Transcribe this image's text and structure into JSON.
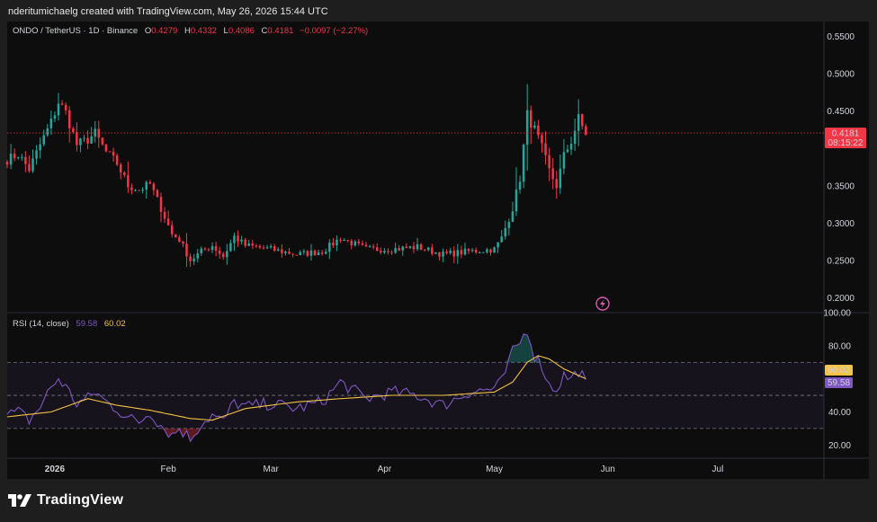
{
  "header": {
    "text": "nderitumichaelg created with TradingView.com, May 26, 2026 15:44 UTC"
  },
  "legend": {
    "symbol": "ONDO / TetherUS · 1D · Binance",
    "open_label": "O",
    "open": "0.4279",
    "high_label": "H",
    "high": "0.4332",
    "low_label": "L",
    "low": "0.4086",
    "close_label": "C",
    "close": "0.4181",
    "change": "−0.0097 (−2.27%)"
  },
  "rsi_legend": {
    "label": "RSI (14, close)",
    "rsi_value": "59.58",
    "ma_value": "60.02"
  },
  "price_badge": {
    "price": "0.4181",
    "countdown": "08:15:22"
  },
  "rsi_badges": {
    "ma": "60.02",
    "rsi": "59.58"
  },
  "brand": {
    "name": "TradingView",
    "logo_icon": "tradingview-logo-icon"
  },
  "colors": {
    "up": "#26a69a",
    "down": "#f23645",
    "rsi": "#7e57c2",
    "rsi_ma": "#f5c242",
    "price_line": "#f23645"
  },
  "chart_data": [
    {
      "type": "candlestick",
      "title": "ONDO / TetherUS · 1D · Binance",
      "y_axis_ticks": [
        "0.5500",
        "0.5000",
        "0.4500",
        "0.3500",
        "0.3000",
        "0.2500",
        "0.2000"
      ],
      "ylim": [
        0.18,
        0.57
      ],
      "x_axis_ticks": [
        "2026",
        "Feb",
        "Mar",
        "Apr",
        "May",
        "Jun",
        "Jul"
      ],
      "x_start": "2025-12-19",
      "x_end": "2026-07-30",
      "last_price": 0.4181,
      "ohlc_anchors": [
        [
          "2025-12-19",
          0.385
        ],
        [
          "2025-12-22",
          0.392
        ],
        [
          "2025-12-25",
          0.372
        ],
        [
          "2025-12-28",
          0.405
        ],
        [
          "2025-12-31",
          0.435
        ],
        [
          "2026-01-02",
          0.462
        ],
        [
          "2026-01-04",
          0.448
        ],
        [
          "2026-01-07",
          0.405
        ],
        [
          "2026-01-10",
          0.412
        ],
        [
          "2026-01-12",
          0.42
        ],
        [
          "2026-01-15",
          0.395
        ],
        [
          "2026-01-18",
          0.38
        ],
        [
          "2026-01-21",
          0.35
        ],
        [
          "2026-01-24",
          0.345
        ],
        [
          "2026-01-27",
          0.352
        ],
        [
          "2026-01-30",
          0.32
        ],
        [
          "2026-02-02",
          0.285
        ],
        [
          "2026-02-04",
          0.278
        ],
        [
          "2026-02-07",
          0.25
        ],
        [
          "2026-02-10",
          0.262
        ],
        [
          "2026-02-13",
          0.27
        ],
        [
          "2026-02-16",
          0.255
        ],
        [
          "2026-02-19",
          0.282
        ],
        [
          "2026-02-22",
          0.27
        ],
        [
          "2026-03-01",
          0.265
        ],
        [
          "2026-03-08",
          0.258
        ],
        [
          "2026-03-15",
          0.262
        ],
        [
          "2026-03-20",
          0.28
        ],
        [
          "2026-03-27",
          0.265
        ],
        [
          "2026-04-03",
          0.265
        ],
        [
          "2026-04-10",
          0.268
        ],
        [
          "2026-04-17",
          0.258
        ],
        [
          "2026-04-24",
          0.262
        ],
        [
          "2026-05-01",
          0.265
        ],
        [
          "2026-05-03",
          0.28
        ],
        [
          "2026-05-06",
          0.32
        ],
        [
          "2026-05-08",
          0.36
        ],
        [
          "2026-05-10",
          0.445
        ],
        [
          "2026-05-12",
          0.425
        ],
        [
          "2026-05-14",
          0.4
        ],
        [
          "2026-05-16",
          0.37
        ],
        [
          "2026-05-18",
          0.35
        ],
        [
          "2026-05-20",
          0.39
        ],
        [
          "2026-05-22",
          0.41
        ],
        [
          "2026-05-24",
          0.44
        ],
        [
          "2026-05-26",
          0.418
        ]
      ]
    },
    {
      "type": "line",
      "title": "RSI (14, close)",
      "y_axis_ticks": [
        "100.00",
        "80.00",
        "40.00",
        "20.00"
      ],
      "ylim": [
        12,
        100
      ],
      "bands": {
        "upper": 70,
        "middle": 50,
        "lower": 30
      },
      "series": [
        {
          "name": "RSI",
          "values": [
            [
              "2025-12-19",
              38
            ],
            [
              "2025-12-22",
              40
            ],
            [
              "2025-12-25",
              35
            ],
            [
              "2025-12-28",
              43
            ],
            [
              "2025-12-31",
              55
            ],
            [
              "2026-01-02",
              60
            ],
            [
              "2026-01-04",
              55
            ],
            [
              "2026-01-07",
              45
            ],
            [
              "2026-01-10",
              48
            ],
            [
              "2026-01-12",
              52
            ],
            [
              "2026-01-15",
              46
            ],
            [
              "2026-01-18",
              42
            ],
            [
              "2026-01-21",
              36
            ],
            [
              "2026-01-24",
              34
            ],
            [
              "2026-01-27",
              40
            ],
            [
              "2026-01-30",
              32
            ],
            [
              "2026-02-02",
              26
            ],
            [
              "2026-02-04",
              30
            ],
            [
              "2026-02-07",
              24
            ],
            [
              "2026-02-10",
              33
            ],
            [
              "2026-02-13",
              38
            ],
            [
              "2026-02-16",
              34
            ],
            [
              "2026-02-19",
              46
            ],
            [
              "2026-02-22",
              43
            ],
            [
              "2026-03-01",
              45
            ],
            [
              "2026-03-08",
              42
            ],
            [
              "2026-03-15",
              46
            ],
            [
              "2026-03-20",
              58
            ],
            [
              "2026-03-27",
              48
            ],
            [
              "2026-04-03",
              52
            ],
            [
              "2026-04-10",
              50
            ],
            [
              "2026-04-17",
              44
            ],
            [
              "2026-04-24",
              52
            ],
            [
              "2026-05-01",
              54
            ],
            [
              "2026-05-03",
              58
            ],
            [
              "2026-05-06",
              76
            ],
            [
              "2026-05-08",
              82
            ],
            [
              "2026-05-10",
              90
            ],
            [
              "2026-05-12",
              74
            ],
            [
              "2026-05-14",
              68
            ],
            [
              "2026-05-16",
              56
            ],
            [
              "2026-05-18",
              54
            ],
            [
              "2026-05-20",
              62
            ],
            [
              "2026-05-22",
              60
            ],
            [
              "2026-05-24",
              65
            ],
            [
              "2026-05-26",
              59.58
            ]
          ]
        },
        {
          "name": "RSI-based MA",
          "values": [
            [
              "2025-12-19",
              37
            ],
            [
              "2025-12-31",
              40
            ],
            [
              "2026-01-10",
              48
            ],
            [
              "2026-01-18",
              44
            ],
            [
              "2026-01-27",
              41
            ],
            [
              "2026-02-07",
              36
            ],
            [
              "2026-02-13",
              35
            ],
            [
              "2026-02-22",
              42
            ],
            [
              "2026-03-08",
              46
            ],
            [
              "2026-03-20",
              48
            ],
            [
              "2026-04-03",
              50
            ],
            [
              "2026-04-17",
              50
            ],
            [
              "2026-05-01",
              52
            ],
            [
              "2026-05-06",
              58
            ],
            [
              "2026-05-10",
              70
            ],
            [
              "2026-05-13",
              74
            ],
            [
              "2026-05-16",
              72
            ],
            [
              "2026-05-20",
              66
            ],
            [
              "2026-05-26",
              60.02
            ]
          ]
        }
      ]
    }
  ]
}
